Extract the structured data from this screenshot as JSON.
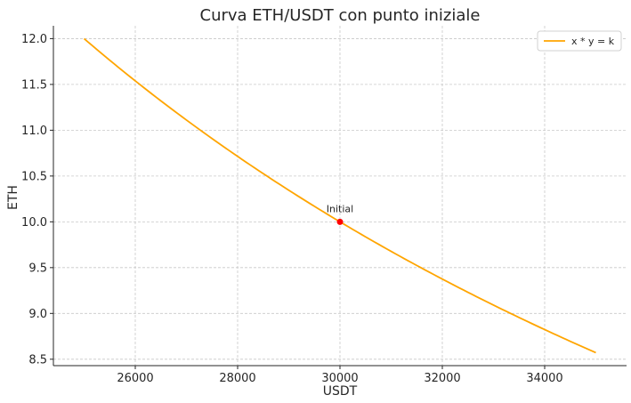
{
  "chart_data": {
    "type": "line",
    "title": "Curva ETH/USDT con punto iniziale",
    "xlabel": "USDT",
    "ylabel": "ETH",
    "xlim": [
      24400,
      35600
    ],
    "ylim": [
      8.43,
      12.14
    ],
    "x_ticks": [
      26000,
      28000,
      30000,
      32000,
      34000
    ],
    "y_ticks": [
      8.5,
      9.0,
      9.5,
      10.0,
      10.5,
      11.0,
      11.5,
      12.0
    ],
    "y_tick_labels": [
      "8.5",
      "9.0",
      "9.5",
      "10.0",
      "10.5",
      "11.0",
      "11.5",
      "12.0"
    ],
    "grid": true,
    "legend_position": "top-right",
    "series": [
      {
        "name": "x * y = k",
        "color": "#FFA500",
        "x": [
          25000,
          26000,
          27000,
          28000,
          29000,
          30000,
          31000,
          32000,
          33000,
          34000,
          35000
        ],
        "y": [
          12.0,
          11.538,
          11.111,
          10.714,
          10.345,
          10.0,
          9.677,
          9.375,
          9.091,
          8.824,
          8.571
        ]
      }
    ],
    "points": [
      {
        "label": "Initial",
        "x": 30000,
        "y": 10.0,
        "color": "#FF0000"
      }
    ]
  }
}
